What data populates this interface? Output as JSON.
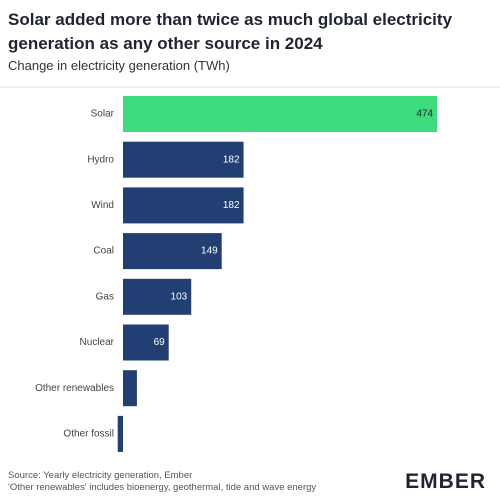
{
  "chart_data": {
    "type": "bar",
    "orientation": "horizontal",
    "title": "Solar added more than twice as much global electricity generation as any other source in 2024",
    "subtitle": "Change in electricity generation (TWh)",
    "categories": [
      "Solar",
      "Hydro",
      "Wind",
      "Coal",
      "Gas",
      "Nuclear",
      "Other renewables",
      "Other fossil"
    ],
    "values": [
      474,
      182,
      182,
      149,
      103,
      69,
      21,
      -8
    ],
    "colors": [
      "#3cdc7c",
      "#213f73",
      "#213f73",
      "#213f73",
      "#213f73",
      "#213f73",
      "#213f73",
      "#213f73"
    ],
    "source": "Source: Yearly electricity generation, Ember",
    "note": "'Other renewables' includes bioenergy, geothermal, tide and wave energy",
    "logo": "EMBER"
  }
}
